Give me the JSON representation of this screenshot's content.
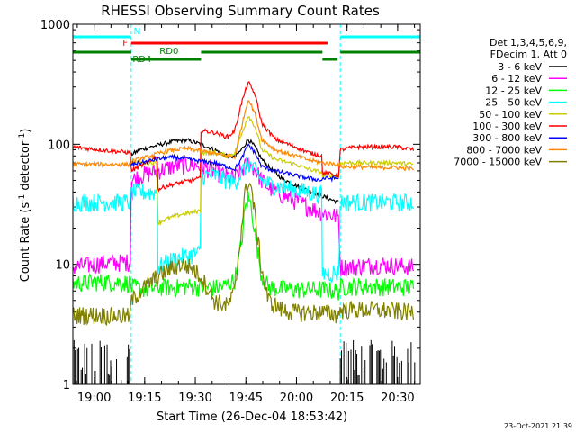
{
  "chart_data": {
    "type": "line",
    "title": "RHESSI Observing Summary Count Rates",
    "xlabel": "Start Time (26-Dec-04 18:53:42)",
    "ylabel_main": "Count Rate (s",
    "ylabel_sup1": "-1",
    "ylabel_mid": " detector",
    "ylabel_sup2": "-1",
    "ylabel_end": ")",
    "yscale": "log",
    "ylim": [
      1,
      1000
    ],
    "xlim_minutes": [
      0,
      103
    ],
    "x_unit": "minutes after 18:53:42",
    "xticks": [
      {
        "label": "19:00",
        "value": 6.3
      },
      {
        "label": "19:15",
        "value": 21.3
      },
      {
        "label": "19:30",
        "value": 36.3
      },
      {
        "label": "19:45",
        "value": 51.3
      },
      {
        "label": "20:00",
        "value": 66.3
      },
      {
        "label": "20:15",
        "value": 81.3
      },
      {
        "label": "20:30",
        "value": 96.3
      }
    ],
    "yticks": [
      {
        "label": "1",
        "value": 1
      },
      {
        "label": "10",
        "value": 10
      },
      {
        "label": "100",
        "value": 100
      },
      {
        "label": "1000",
        "value": 1000
      }
    ],
    "legend": {
      "header1": "Det 1,3,4,5,6,9,",
      "header2": "FDecim 1, Att 0",
      "placement": "right"
    },
    "night_intervals": [
      [
        0,
        17.3
      ],
      [
        79.3,
        103
      ]
    ],
    "flags": [
      {
        "label": "N",
        "color": "#00ffff",
        "segments": [
          [
            0,
            17.3
          ],
          [
            79.3,
            103
          ]
        ]
      },
      {
        "label": "F",
        "color": "#ff0000",
        "segments": [
          [
            17.3,
            75.5
          ]
        ]
      },
      {
        "label": "RD0",
        "color": "#008000",
        "segments": [
          [
            0,
            17.3
          ],
          [
            38.0,
            74.0
          ],
          [
            79.3,
            103
          ]
        ]
      },
      {
        "label": "RD4",
        "color": "#008000",
        "segments": [
          [
            17.3,
            38.0
          ],
          [
            74.0,
            78.5
          ]
        ]
      }
    ],
    "series": [
      {
        "name": "3 - 6 keV",
        "color": "#000000",
        "x": [
          17.3,
          20,
          25,
          30,
          34,
          38,
          42,
          45,
          48,
          50,
          52,
          54,
          56,
          58,
          60,
          62,
          65,
          68,
          71,
          74,
          76,
          78.8
        ],
        "y": [
          82,
          90,
          98,
          106,
          108,
          100,
          90,
          82,
          78,
          90,
          110,
          95,
          75,
          65,
          58,
          52,
          47,
          43,
          40,
          37,
          35,
          33
        ]
      },
      {
        "name": "6 - 12 keV",
        "color": "#ff00ff",
        "x": [
          0,
          8,
          17.0,
          17.3,
          20,
          25,
          30,
          34,
          38,
          42,
          45,
          48,
          50,
          52,
          54,
          56,
          58,
          62,
          66,
          70,
          74,
          78.8,
          79.3,
          84,
          90,
          96,
          101
        ],
        "y": [
          9.5,
          10.2,
          10.5,
          50,
          55,
          60,
          66,
          68,
          66,
          60,
          55,
          52,
          60,
          70,
          62,
          50,
          44,
          38,
          34,
          30,
          27,
          25,
          9.5,
          9.6,
          10,
          9.8,
          9.5
        ]
      },
      {
        "name": "12 - 25 keV",
        "color": "#00ff00",
        "x": [
          0,
          8,
          17.0,
          17.3,
          22,
          26,
          30,
          34,
          38,
          42,
          45,
          48,
          50,
          51,
          52,
          53,
          54,
          56,
          58,
          62,
          66,
          70,
          74,
          78.8,
          79.3,
          84,
          90,
          96,
          101
        ],
        "y": [
          7,
          7.2,
          7,
          6.5,
          6.2,
          6.5,
          6.4,
          6.6,
          6.5,
          6.4,
          6.6,
          7.5,
          15,
          28,
          36,
          30,
          18,
          8,
          6.5,
          6.3,
          6.2,
          6.2,
          6.2,
          6.0,
          6.5,
          6.6,
          6.6,
          6.5,
          6.5
        ]
      },
      {
        "name": "25 - 50 keV",
        "color": "#00ffff",
        "x": [
          0,
          8,
          17.0,
          17.3,
          22,
          25,
          25.1,
          28,
          32,
          35,
          37.9,
          38.0,
          42,
          46,
          48,
          50,
          52,
          54,
          56,
          60,
          66,
          70,
          73.9,
          74.0,
          78.5,
          78.8,
          79.3,
          84,
          90,
          96,
          101
        ],
        "y": [
          33,
          33,
          33,
          40,
          40,
          40,
          9.5,
          10.5,
          11.5,
          12,
          12.5,
          55,
          55,
          50,
          48,
          58,
          70,
          60,
          50,
          45,
          42,
          40,
          38,
          8.5,
          8.5,
          8.5,
          33,
          33,
          33,
          33,
          33
        ]
      },
      {
        "name": "50 - 100 keV",
        "color": "#cccc00",
        "x": [
          17.3,
          22,
          25,
          25.1,
          28,
          32,
          35,
          37.9,
          38.0,
          42,
          46,
          48,
          50,
          52,
          54,
          56,
          60,
          66,
          70,
          73.9,
          74.0,
          78.8,
          79.3,
          84,
          90,
          96,
          101
        ],
        "y": [
          70,
          70,
          70,
          22,
          24,
          26,
          27,
          28,
          85,
          85,
          80,
          85,
          120,
          175,
          140,
          90,
          75,
          68,
          62,
          58,
          55,
          55,
          70,
          70,
          70,
          70,
          68
        ]
      },
      {
        "name": "100 - 300 keV",
        "color": "#ff0000",
        "x": [
          0,
          8,
          17.0,
          17.3,
          22,
          25,
          25.1,
          28,
          32,
          35,
          37.9,
          38.0,
          42,
          46,
          48,
          50,
          52,
          54,
          56,
          60,
          66,
          70,
          73.9,
          74.0,
          78.8,
          79.3,
          84,
          90,
          96,
          101
        ],
        "y": [
          95,
          90,
          85,
          60,
          70,
          80,
          42,
          45,
          48,
          50,
          52,
          130,
          125,
          115,
          130,
          220,
          330,
          260,
          150,
          110,
          95,
          85,
          80,
          58,
          55,
          90,
          95,
          95,
          95,
          90
        ]
      },
      {
        "name": "300 - 800 keV",
        "color": "#0000ff",
        "x": [
          17.3,
          22,
          26,
          30,
          34,
          38,
          42,
          45,
          48,
          50,
          52,
          54,
          56,
          60,
          66,
          70,
          73.9,
          74.0,
          78.8
        ],
        "y": [
          68,
          72,
          76,
          78,
          75,
          72,
          70,
          66,
          62,
          75,
          100,
          85,
          65,
          60,
          55,
          52,
          50,
          52,
          52
        ]
      },
      {
        "name": "800 - 7000 keV",
        "color": "#ff8800",
        "x": [
          0,
          8,
          17.0,
          17.3,
          22,
          26,
          30,
          34,
          38,
          42,
          45,
          48,
          50,
          52,
          54,
          56,
          60,
          66,
          70,
          74,
          78.8,
          79.3,
          84,
          90,
          96,
          101
        ],
        "y": [
          68,
          68,
          68,
          72,
          78,
          85,
          90,
          92,
          88,
          84,
          80,
          78,
          140,
          240,
          180,
          110,
          90,
          80,
          74,
          70,
          68,
          65,
          65,
          64,
          64,
          62
        ]
      },
      {
        "name": "7000 - 15000 keV",
        "color": "#808000",
        "x": [
          0,
          8,
          17.0,
          17.3,
          20,
          24,
          28,
          32,
          35,
          38,
          42,
          46,
          48,
          50,
          51,
          52,
          53,
          54,
          56,
          58,
          62,
          66,
          70,
          74,
          78.8,
          79.3,
          84,
          90,
          96,
          101
        ],
        "y": [
          3.8,
          3.8,
          3.7,
          5,
          6,
          7.5,
          9,
          10,
          9.5,
          8,
          5,
          4.5,
          6,
          20,
          38,
          50,
          42,
          25,
          9,
          5,
          4.2,
          4.0,
          4.0,
          4.0,
          3.8,
          4.2,
          4.2,
          4.2,
          4.1,
          4.0
        ]
      }
    ],
    "background_counts": [
      {
        "color": "#000000",
        "segments": [
          [
            0,
            17.3
          ],
          [
            79.3,
            101.5
          ]
        ],
        "y": 1.8
      }
    ]
  },
  "stamp": "23-Oct-2021 21:39"
}
